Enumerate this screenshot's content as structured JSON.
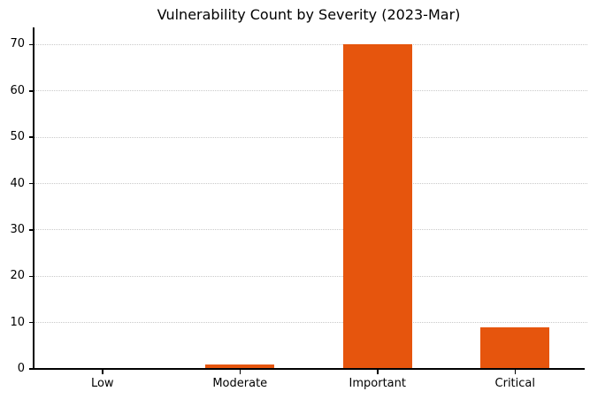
{
  "chart_data": {
    "type": "bar",
    "title": "Vulnerability Count by Severity (2023-Mar)",
    "categories": [
      "Low",
      "Moderate",
      "Important",
      "Critical"
    ],
    "values": [
      0,
      1,
      70,
      9
    ],
    "xlabel": "",
    "ylabel": "",
    "yticks": [
      0,
      10,
      20,
      30,
      40,
      50,
      60,
      70
    ],
    "ylim": [
      0,
      73.7
    ],
    "grid": "horizontal-dotted",
    "legend_position": "none",
    "bar_color": "#e6550d",
    "grid_color": "#c9c9c9",
    "axis_color": "#000000",
    "text_color": "#000000",
    "background_color": "#ffffff"
  }
}
